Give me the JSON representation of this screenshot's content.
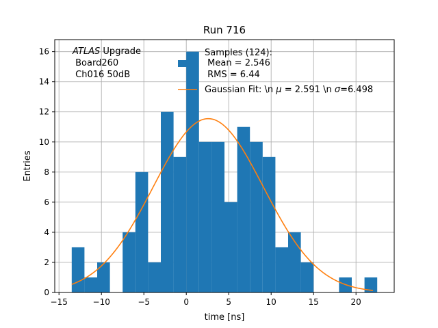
{
  "chart_data": {
    "type": "bar",
    "title": "Run 716",
    "xlabel": "time [ns]",
    "ylabel": "Entries",
    "xlim": [
      -15.5,
      24.5
    ],
    "ylim": [
      0,
      16.8
    ],
    "xticks": [
      -15,
      -10,
      -5,
      0,
      5,
      10,
      15,
      20
    ],
    "yticks": [
      0,
      2,
      4,
      6,
      8,
      10,
      12,
      14,
      16
    ],
    "xtick_labels": [
      "−15",
      "−10",
      "−5",
      "0",
      "5",
      "10",
      "15",
      "20"
    ],
    "ytick_labels": [
      "0",
      "2",
      "4",
      "6",
      "8",
      "10",
      "12",
      "14",
      "16"
    ],
    "grid": true,
    "bin_edges": [
      -13.5,
      -12.0,
      -10.5,
      -9.0,
      -7.5,
      -6.0,
      -4.5,
      -3.0,
      -1.5,
      0.0,
      1.5,
      3.0,
      4.5,
      6.0,
      7.5,
      9.0,
      10.5,
      12.0,
      13.5,
      15.0,
      16.5,
      18.0,
      19.5,
      21.0,
      22.5
    ],
    "counts": [
      3,
      1,
      2,
      0,
      4,
      8,
      2,
      12,
      9,
      16,
      10,
      10,
      6,
      11,
      10,
      9,
      3,
      4,
      2,
      0,
      0,
      1,
      0,
      1
    ],
    "histogram_color": "#1f77b4",
    "fit": {
      "name": "Gaussian Fit",
      "amplitude": 11.55,
      "mu": 2.591,
      "sigma": 6.498,
      "x_range": [
        -13.5,
        22.0
      ],
      "color": "#ff7f0e"
    },
    "annotation_lines": [
      "Upgrade",
      " Board260",
      " Ch016 50dB"
    ],
    "annotation_italic": "ATLAS",
    "legend": {
      "location": "top-right",
      "histogram_lines": [
        "Samples (124):",
        " Mean = 2.546",
        " RMS = 6.44"
      ],
      "fit_label_parts": [
        "Gaussian Fit: \\n ",
        "μ",
        " = 2.591 \\n ",
        "σ",
        "=6.498"
      ]
    }
  }
}
